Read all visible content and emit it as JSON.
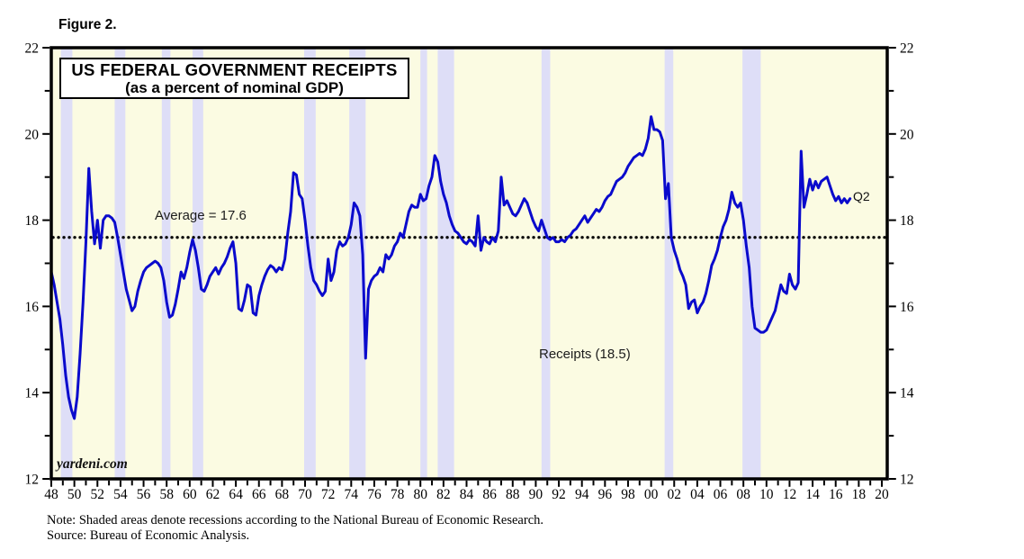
{
  "figure_label": "Figure 2.",
  "title": {
    "line1": "US FEDERAL GOVERNMENT RECEIPTS",
    "line2": "(as a percent of nominal GDP)"
  },
  "annotations": {
    "average_label": "Average = 17.6",
    "series_label": "Receipts (18.5)",
    "endpoint_label": "Q2"
  },
  "watermark": "yardeni.com",
  "notes": {
    "note": "Note: Shaded areas denote recessions according to the National Bureau of Economic Research.",
    "source": "Source: Bureau of Economic Analysis."
  },
  "colors": {
    "line": "#0a0acc",
    "recession_band": "#dedef7",
    "plot_bg": "#fbfbe2",
    "average_line": "#000000",
    "frame": "#000000"
  },
  "chart_data": {
    "type": "line",
    "title": "US FEDERAL GOVERNMENT RECEIPTS (as a percent of nominal GDP)",
    "x_axis": {
      "min": 1948,
      "max": 2020,
      "minor_tick_step": 1,
      "labeled_tick_step": 2,
      "tick_labels": [
        "48",
        "50",
        "52",
        "54",
        "56",
        "58",
        "60",
        "62",
        "64",
        "66",
        "68",
        "70",
        "72",
        "74",
        "76",
        "78",
        "80",
        "82",
        "84",
        "86",
        "88",
        "90",
        "92",
        "94",
        "96",
        "98",
        "00",
        "02",
        "04",
        "06",
        "08",
        "10",
        "12",
        "14",
        "16",
        "18",
        "20"
      ]
    },
    "y_axis": {
      "min": 12,
      "max": 22,
      "minor_tick_step": 1,
      "labeled_tick_step": 2,
      "tick_labels": [
        "22",
        "20",
        "18",
        "16",
        "14",
        "12"
      ],
      "sides": [
        "left",
        "right"
      ]
    },
    "average_value": 17.6,
    "grid": false,
    "legend": "none",
    "recessions": [
      [
        1948.83,
        1949.83
      ],
      [
        1953.5,
        1954.42
      ],
      [
        1957.58,
        1958.33
      ],
      [
        1960.25,
        1961.17
      ],
      [
        1969.92,
        1970.92
      ],
      [
        1973.83,
        1975.25
      ],
      [
        1980.0,
        1980.58
      ],
      [
        1981.5,
        1982.92
      ],
      [
        1990.5,
        1991.25
      ],
      [
        2001.17,
        2001.92
      ],
      [
        2007.92,
        2009.5
      ]
    ],
    "series": [
      {
        "name": "Receipts",
        "latest_value": 18.5,
        "latest_period": "Q2",
        "x_start": 1948.0,
        "x_step": 0.25,
        "values": [
          16.8,
          16.5,
          16.1,
          15.7,
          15.1,
          14.4,
          13.9,
          13.6,
          13.4,
          13.9,
          14.9,
          16.1,
          17.5,
          19.2,
          18.2,
          17.45,
          18.0,
          17.35,
          18.0,
          18.1,
          18.1,
          18.05,
          17.95,
          17.6,
          17.2,
          16.8,
          16.4,
          16.15,
          15.9,
          16.0,
          16.35,
          16.6,
          16.8,
          16.9,
          16.95,
          17.0,
          17.05,
          17.0,
          16.9,
          16.6,
          16.1,
          15.75,
          15.8,
          16.05,
          16.4,
          16.8,
          16.65,
          16.9,
          17.25,
          17.55,
          17.3,
          16.9,
          16.4,
          16.35,
          16.5,
          16.7,
          16.8,
          16.9,
          16.75,
          16.9,
          17.0,
          17.15,
          17.35,
          17.5,
          17.0,
          15.95,
          15.9,
          16.15,
          16.5,
          16.45,
          15.85,
          15.8,
          16.25,
          16.5,
          16.7,
          16.85,
          16.95,
          16.9,
          16.8,
          16.9,
          16.85,
          17.1,
          17.7,
          18.2,
          19.1,
          19.05,
          18.6,
          18.5,
          18.0,
          17.4,
          16.9,
          16.6,
          16.5,
          16.35,
          16.25,
          16.35,
          17.1,
          16.6,
          16.8,
          17.3,
          17.5,
          17.4,
          17.45,
          17.6,
          17.9,
          18.4,
          18.3,
          18.1,
          17.2,
          14.8,
          16.4,
          16.6,
          16.7,
          16.75,
          16.9,
          16.8,
          17.2,
          17.1,
          17.2,
          17.4,
          17.5,
          17.7,
          17.6,
          17.9,
          18.2,
          18.35,
          18.3,
          18.3,
          18.6,
          18.45,
          18.5,
          18.8,
          19.0,
          19.5,
          19.35,
          18.9,
          18.6,
          18.4,
          18.1,
          17.9,
          17.75,
          17.7,
          17.6,
          17.5,
          17.45,
          17.55,
          17.5,
          17.4,
          18.1,
          17.3,
          17.6,
          17.5,
          17.45,
          17.6,
          17.5,
          17.75,
          19.0,
          18.35,
          18.45,
          18.3,
          18.15,
          18.1,
          18.2,
          18.35,
          18.5,
          18.4,
          18.2,
          18.0,
          17.85,
          17.75,
          18.0,
          17.8,
          17.6,
          17.55,
          17.6,
          17.5,
          17.5,
          17.55,
          17.5,
          17.6,
          17.65,
          17.75,
          17.8,
          17.9,
          18.0,
          18.1,
          17.95,
          18.05,
          18.15,
          18.25,
          18.2,
          18.3,
          18.45,
          18.55,
          18.6,
          18.75,
          18.9,
          18.95,
          19.0,
          19.1,
          19.25,
          19.35,
          19.45,
          19.5,
          19.55,
          19.5,
          19.65,
          19.9,
          20.4,
          20.1,
          20.1,
          20.05,
          19.85,
          18.5,
          18.85,
          17.6,
          17.3,
          17.1,
          16.85,
          16.7,
          16.5,
          15.95,
          16.1,
          16.15,
          15.85,
          16.0,
          16.1,
          16.3,
          16.6,
          16.95,
          17.1,
          17.3,
          17.6,
          17.85,
          18.0,
          18.25,
          18.65,
          18.4,
          18.3,
          18.4,
          18.0,
          17.4,
          16.9,
          16.0,
          15.5,
          15.45,
          15.4,
          15.4,
          15.45,
          15.6,
          15.75,
          15.9,
          16.2,
          16.5,
          16.35,
          16.3,
          16.75,
          16.5,
          16.4,
          16.55,
          19.6,
          18.3,
          18.6,
          18.95,
          18.7,
          18.9,
          18.75,
          18.9,
          18.95,
          19.0,
          18.8,
          18.6,
          18.45,
          18.55,
          18.4,
          18.5,
          18.4,
          18.5
        ]
      }
    ]
  }
}
